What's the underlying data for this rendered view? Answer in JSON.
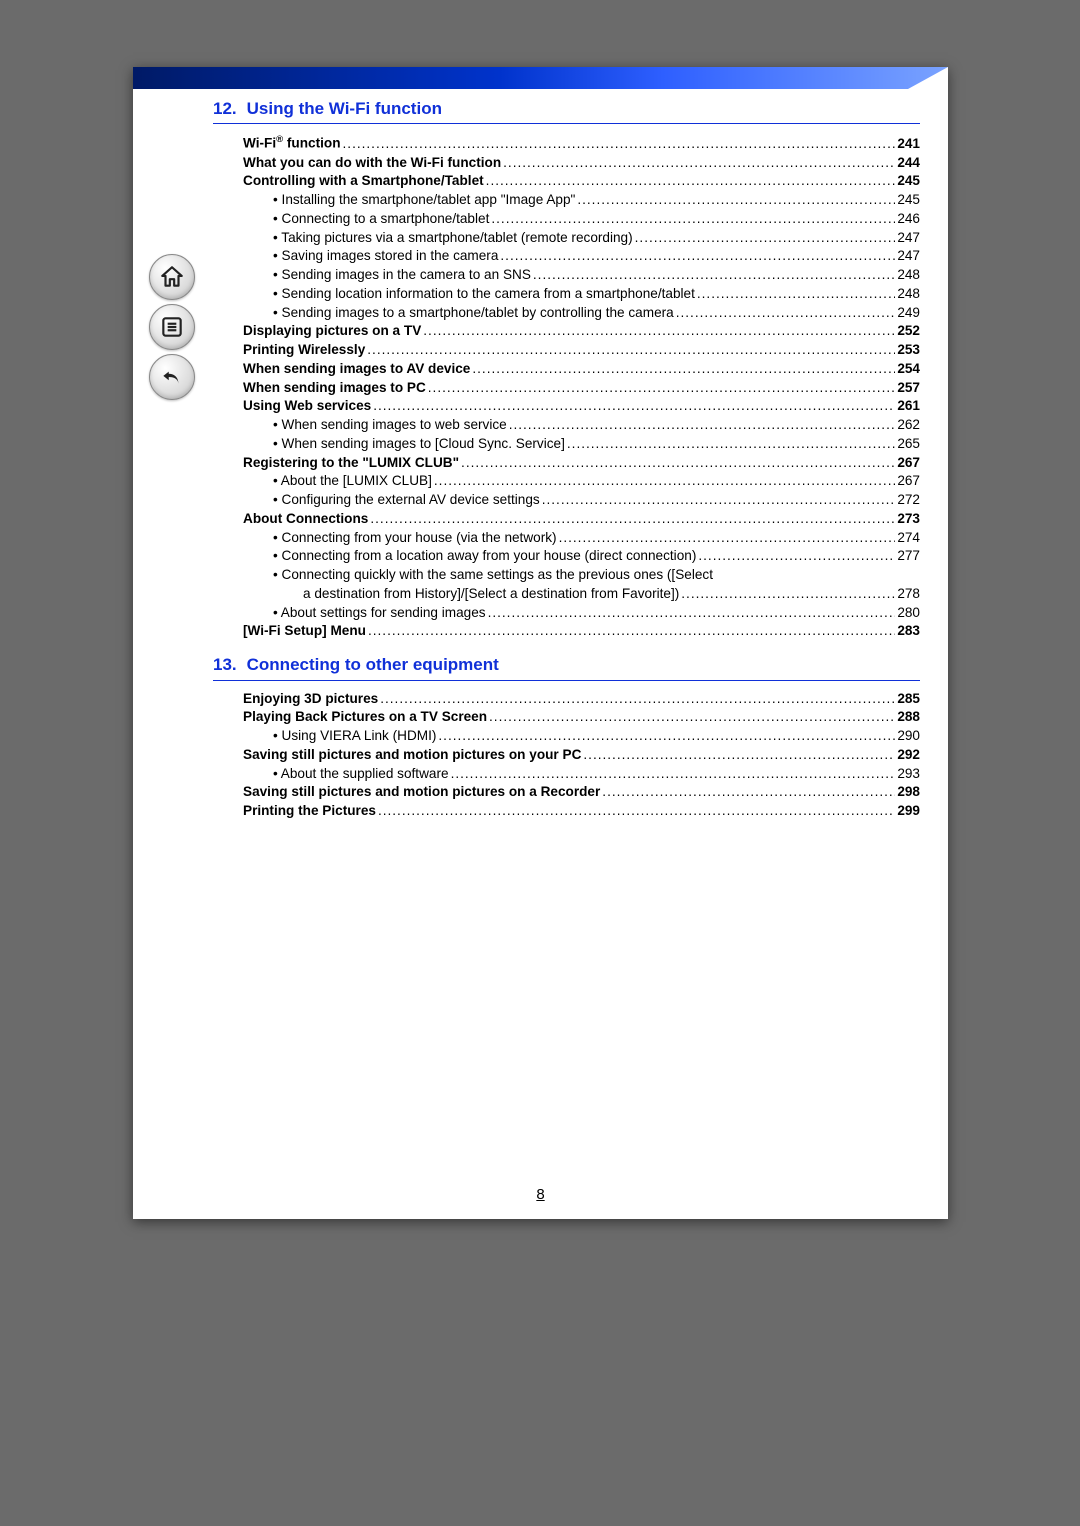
{
  "pageNumber": "8",
  "sidebar": {
    "icons": [
      "home-icon",
      "toc-icon",
      "back-icon"
    ]
  },
  "sections": [
    {
      "number": "12.",
      "title": "Using the Wi-Fi function",
      "items": [
        {
          "label": "Wi-Fi® function",
          "page": "241",
          "bold": true,
          "level": 0,
          "sup": "®"
        },
        {
          "label": "What you can do with the Wi-Fi function",
          "page": "244",
          "bold": true,
          "level": 0
        },
        {
          "label": "Controlling with a Smartphone/Tablet",
          "page": "245",
          "bold": true,
          "level": 0
        },
        {
          "label": "• Installing the smartphone/tablet app \"Image App\"",
          "page": "245",
          "level": 1
        },
        {
          "label": "• Connecting to a smartphone/tablet",
          "page": "246",
          "level": 1
        },
        {
          "label": "• Taking pictures via a smartphone/tablet (remote recording)",
          "page": "247",
          "level": 1
        },
        {
          "label": "• Saving images stored in the camera",
          "page": "247",
          "level": 1
        },
        {
          "label": "• Sending images in the camera to an SNS",
          "page": "248",
          "level": 1
        },
        {
          "label": "• Sending location information to the camera from a smartphone/tablet",
          "page": "248",
          "level": 1
        },
        {
          "label": "• Sending images to a smartphone/tablet by controlling the camera",
          "page": "249",
          "level": 1
        },
        {
          "label": "Displaying pictures on a TV",
          "page": "252",
          "bold": true,
          "level": 0
        },
        {
          "label": "Printing Wirelessly",
          "page": "253",
          "bold": true,
          "level": 0
        },
        {
          "label": "When sending images to AV device",
          "page": "254",
          "bold": true,
          "level": 0
        },
        {
          "label": "When sending images to PC",
          "page": "257",
          "bold": true,
          "level": 0
        },
        {
          "label": "Using Web services",
          "page": "261",
          "bold": true,
          "level": 0
        },
        {
          "label": "• When sending images to web service",
          "page": "262",
          "level": 1
        },
        {
          "label": "• When sending images to [Cloud Sync. Service]",
          "page": "265",
          "level": 1
        },
        {
          "label": "Registering to the \"LUMIX CLUB\"",
          "page": "267",
          "bold": true,
          "level": 0
        },
        {
          "label": "• About the [LUMIX CLUB]",
          "page": "267",
          "level": 1
        },
        {
          "label": "• Configuring the external AV device settings",
          "page": "272",
          "level": 1
        },
        {
          "label": "About Connections",
          "page": "273",
          "bold": true,
          "level": 0
        },
        {
          "label": "• Connecting from your house (via the network)",
          "page": "274",
          "level": 1
        },
        {
          "label": "• Connecting from a location away from your house (direct connection)",
          "page": "277",
          "level": 1
        },
        {
          "wrap": true,
          "line1": "• Connecting quickly with the same settings as the previous ones ([Select",
          "line2": "a destination from History]/[Select a destination from Favorite])",
          "page": "278",
          "level": 1
        },
        {
          "label": "• About settings for sending images",
          "page": "280",
          "level": 1
        },
        {
          "label": "[Wi-Fi Setup] Menu",
          "page": "283",
          "bold": true,
          "level": 0
        }
      ]
    },
    {
      "number": "13.",
      "title": "Connecting to other equipment",
      "items": [
        {
          "label": "Enjoying 3D pictures",
          "page": "285",
          "bold": true,
          "level": 0
        },
        {
          "label": "Playing Back Pictures on a TV Screen",
          "page": "288",
          "bold": true,
          "level": 0
        },
        {
          "label": "• Using VIERA Link (HDMI)",
          "page": "290",
          "level": 1
        },
        {
          "label": "Saving still pictures and motion pictures on your PC",
          "page": "292",
          "bold": true,
          "level": 0
        },
        {
          "label": "• About the supplied software",
          "page": "293",
          "level": 1
        },
        {
          "label": "Saving still pictures and motion pictures on a Recorder",
          "page": "298",
          "bold": true,
          "level": 0
        },
        {
          "label": "Printing the Pictures",
          "page": "299",
          "bold": true,
          "level": 0
        }
      ]
    }
  ]
}
